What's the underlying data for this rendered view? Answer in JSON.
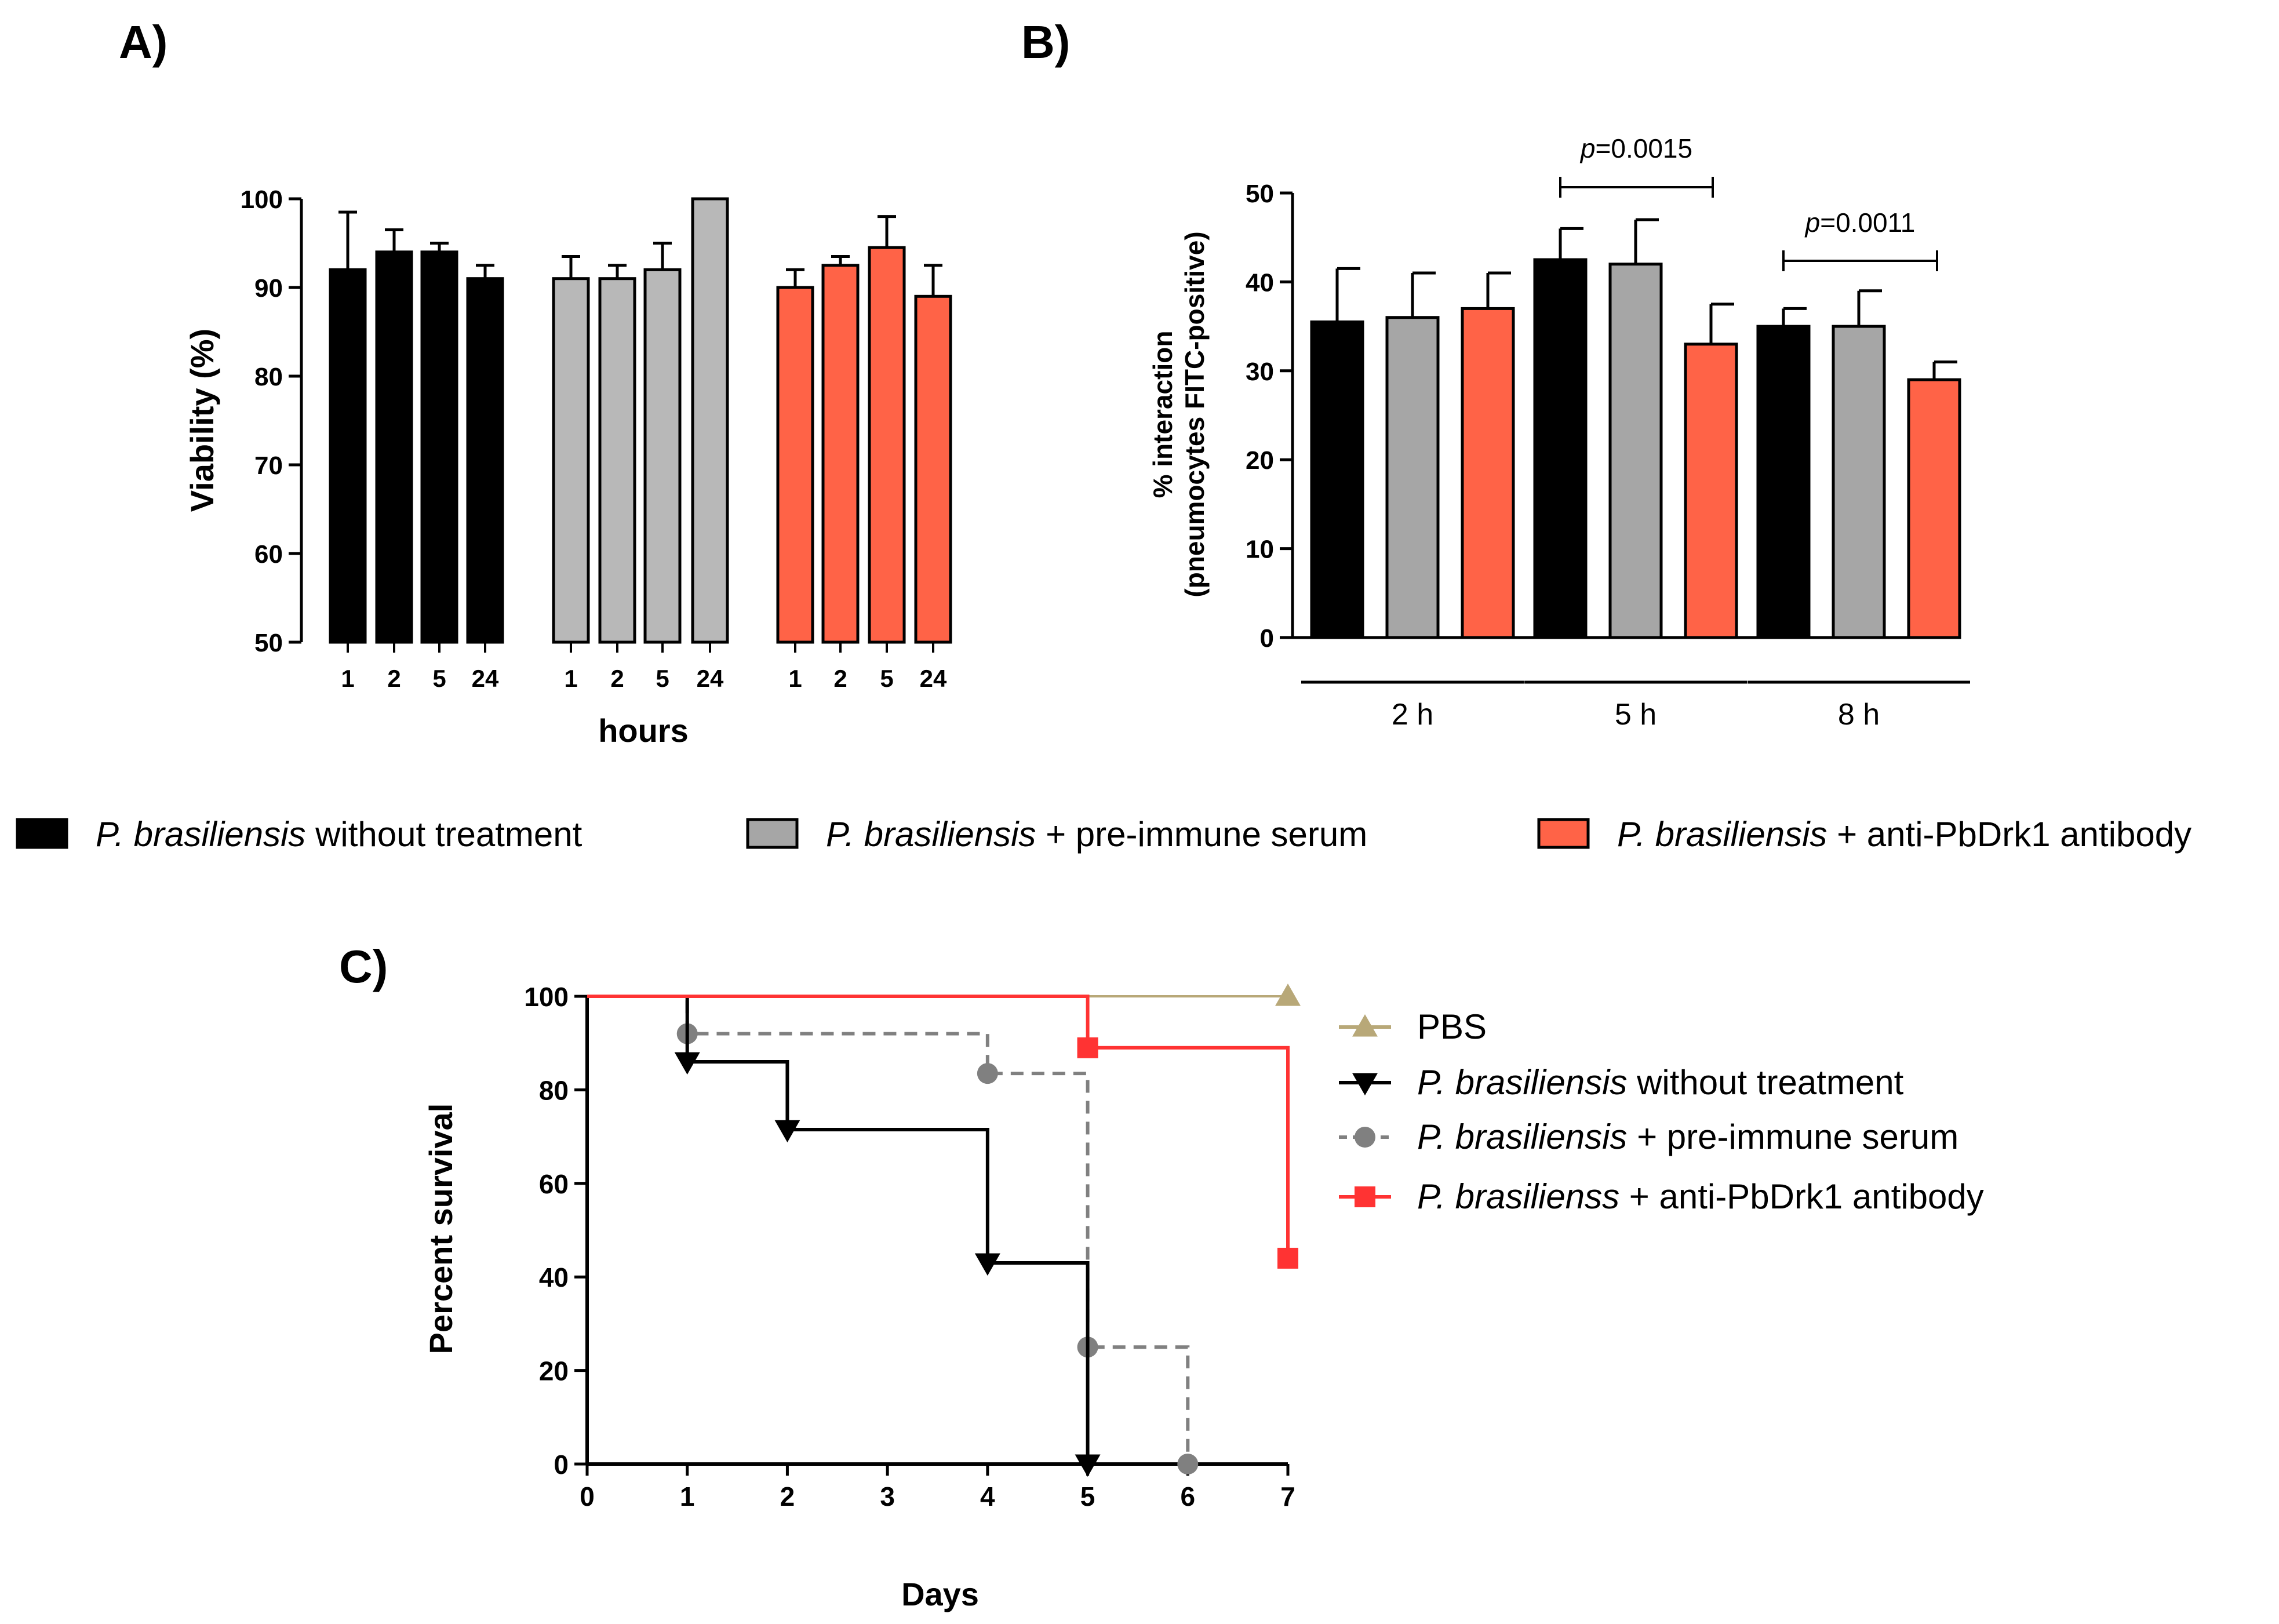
{
  "colors": {
    "black": "#000000",
    "grey": "#A6A6A6",
    "greyA": "#B8B8B8",
    "red": "#FF6347",
    "pbs": "#B8A878",
    "survRed": "#FF3333",
    "survGrey": "#808080"
  },
  "chart_data": [
    {
      "panel": "A)",
      "type": "bar",
      "ylabel": "Viability (%)",
      "xlabel": "hours",
      "ylim": [
        50,
        100
      ],
      "yticks": [
        "50",
        "60",
        "70",
        "80",
        "90",
        "100"
      ],
      "groups": [
        {
          "series": "P. brasiliensis without treatment",
          "color": "#000000",
          "categories": [
            "1",
            "2",
            "5",
            "24"
          ],
          "values": [
            92,
            94,
            94,
            91
          ],
          "errors": [
            6.5,
            2.5,
            1,
            1.5
          ]
        },
        {
          "series": "P. brasiliensis + pre-immune serum",
          "color": "#B8B8B8",
          "categories": [
            "1",
            "2",
            "5",
            "24"
          ],
          "values": [
            91,
            91,
            92,
            100
          ],
          "errors": [
            2.5,
            1.5,
            3,
            0
          ]
        },
        {
          "series": "P. brasiliensis + anti-PbDrk1 antibody",
          "color": "#FF6347",
          "categories": [
            "1",
            "2",
            "5",
            "24"
          ],
          "values": [
            90,
            92.5,
            94.5,
            89
          ],
          "errors": [
            2,
            1,
            3.5,
            3.5
          ]
        }
      ]
    },
    {
      "panel": "B)",
      "type": "bar",
      "ylabel_line1": "% interaction",
      "ylabel_line2": "(pneumocytes FITC-positive)",
      "ylim": [
        0,
        50
      ],
      "yticks": [
        "0",
        "10",
        "20",
        "30",
        "40",
        "50"
      ],
      "categories": [
        "2 h",
        "5 h",
        "8 h"
      ],
      "series": [
        {
          "name": "P. brasiliensis without treatment",
          "color": "#000000",
          "values": [
            35.5,
            42.5,
            35
          ],
          "errors": [
            6,
            3.5,
            2
          ]
        },
        {
          "name": "P. brasiliensis + pre-immune serum",
          "color": "#A6A6A6",
          "values": [
            36,
            42,
            35
          ],
          "errors": [
            5,
            5,
            4
          ]
        },
        {
          "name": "P. brasiliensis + anti-PbDrk1 antibody",
          "color": "#FF6347",
          "values": [
            37,
            33,
            29
          ],
          "errors": [
            4,
            4.5,
            2
          ]
        }
      ],
      "annotations": [
        {
          "p": "p",
          "value": "=0.0015",
          "between": [
            "5 h: without treatment",
            "5 h: anti-PbDrk1"
          ]
        },
        {
          "p": "p",
          "value": "=0.0011",
          "between": [
            "8 h: without treatment",
            "8 h: anti-PbDrk1"
          ]
        }
      ]
    },
    {
      "panel": "C)",
      "type": "line",
      "xlabel": "Days",
      "ylabel": "Percent survival",
      "xlim": [
        0,
        7
      ],
      "ylim": [
        0,
        100
      ],
      "xticks": [
        "0",
        "1",
        "2",
        "3",
        "4",
        "5",
        "6",
        "7"
      ],
      "yticks": [
        "0",
        "20",
        "40",
        "60",
        "80",
        "100"
      ],
      "series": [
        {
          "name": "PBS",
          "color": "#B8A878",
          "marker": "triangle-up",
          "dashed": false,
          "steps": [
            [
              0,
              100
            ],
            [
              7,
              100
            ]
          ],
          "markers": [
            [
              7,
              100
            ]
          ]
        },
        {
          "name": "P. brasiliensis without treatment",
          "color": "#000000",
          "marker": "triangle-down",
          "dashed": false,
          "steps": [
            [
              0,
              100
            ],
            [
              1,
              86
            ],
            [
              2,
              71.5
            ],
            [
              4,
              43
            ],
            [
              5,
              0
            ]
          ],
          "markers": [
            [
              1,
              86
            ],
            [
              2,
              71.5
            ],
            [
              4,
              43
            ],
            [
              5,
              0
            ]
          ]
        },
        {
          "name": "P. brasiliensis + pre-immune serum",
          "color": "#808080",
          "marker": "circle",
          "dashed": true,
          "steps": [
            [
              0,
              100
            ],
            [
              1,
              92
            ],
            [
              4,
              83.5
            ],
            [
              5,
              25
            ],
            [
              6,
              0
            ]
          ],
          "markers": [
            [
              1,
              92
            ],
            [
              4,
              83.5
            ],
            [
              5,
              25
            ],
            [
              6,
              0
            ]
          ]
        },
        {
          "name": "P. brasilienss + anti-PbDrk1 antibody",
          "color": "#FF3333",
          "marker": "square",
          "dashed": false,
          "steps": [
            [
              0,
              100
            ],
            [
              5,
              89
            ],
            [
              7,
              44
            ]
          ],
          "markers": [
            [
              5,
              89
            ],
            [
              7,
              44
            ]
          ]
        }
      ]
    }
  ],
  "legend_ab": [
    {
      "italic": "P. brasiliensis",
      "rest": " without treatment",
      "color": "#000000"
    },
    {
      "italic": "P. brasiliensis",
      "rest": " + pre-immune serum",
      "color": "#A6A6A6"
    },
    {
      "italic": "P. brasiliensis",
      "rest": " + anti-PbDrk1 antibody",
      "color": "#FF6347"
    }
  ],
  "legend_c": [
    {
      "plain": "PBS"
    },
    {
      "italic": "P. brasiliensis",
      "rest": " without treatment"
    },
    {
      "italic": "P. brasiliensis",
      "rest": " + pre-immune serum"
    },
    {
      "italic": "P. brasilienss",
      "rest": " + anti-PbDrk1 antibody"
    }
  ]
}
